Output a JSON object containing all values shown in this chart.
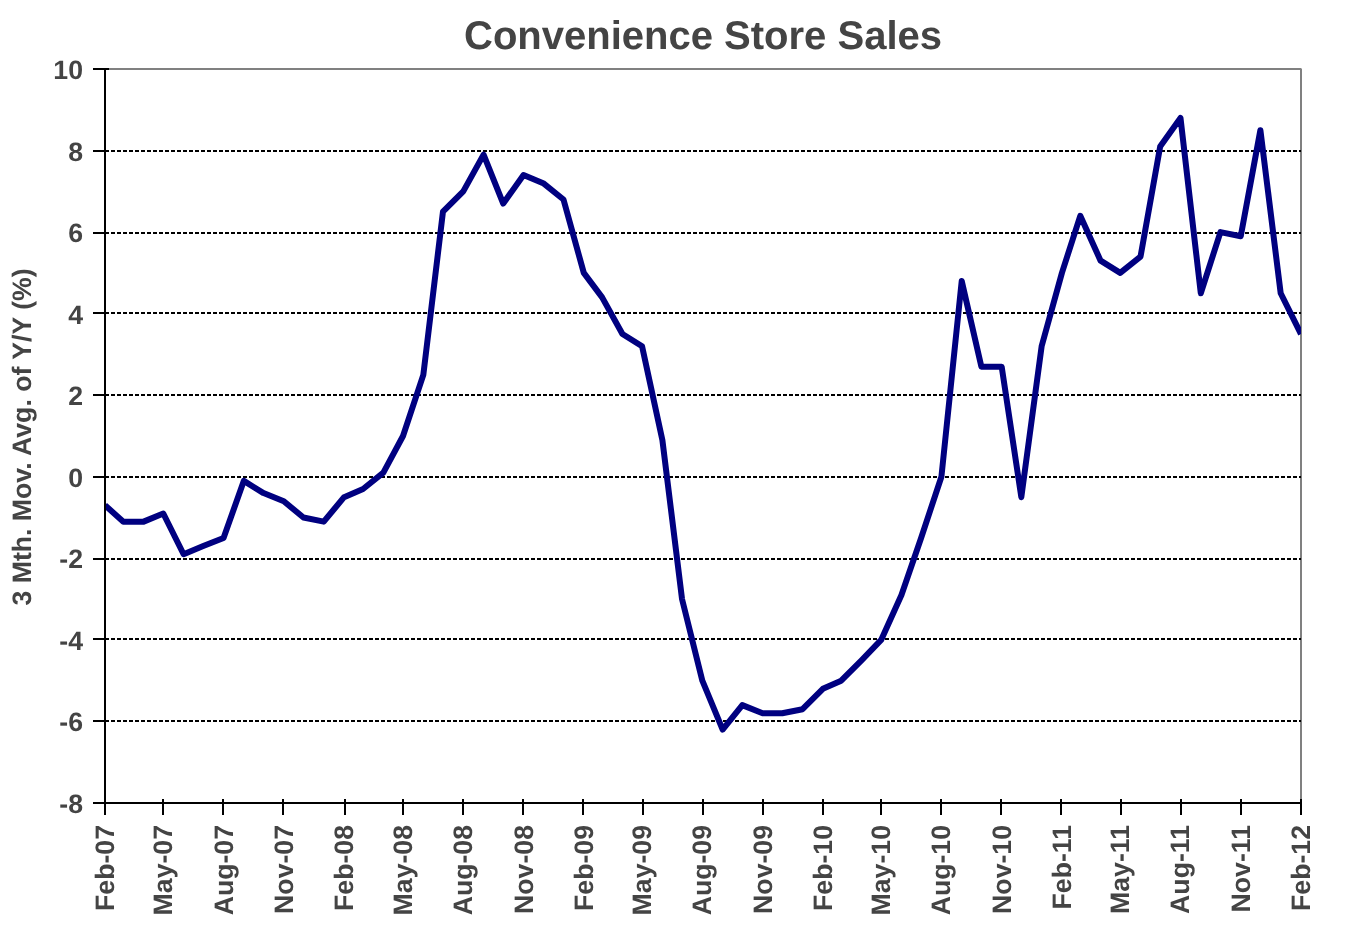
{
  "chart_data": {
    "type": "line",
    "title": "Convenience Store Sales",
    "ylabel": "3 Mth. Mov. Avg. of Y/Y (%)",
    "x": [
      "2007-02",
      "2007-03",
      "2007-04",
      "2007-05",
      "2007-06",
      "2007-07",
      "2007-08",
      "2007-09",
      "2007-10",
      "2007-11",
      "2007-12",
      "2008-01",
      "2008-02",
      "2008-03",
      "2008-04",
      "2008-05",
      "2008-06",
      "2008-07",
      "2008-08",
      "2008-09",
      "2008-10",
      "2008-11",
      "2008-12",
      "2009-01",
      "2009-02",
      "2009-03",
      "2009-04",
      "2009-05",
      "2009-06",
      "2009-07",
      "2009-08",
      "2009-09",
      "2009-10",
      "2009-11",
      "2009-12",
      "2010-01",
      "2010-02",
      "2010-03",
      "2010-04",
      "2010-05",
      "2010-06",
      "2010-07",
      "2010-08",
      "2010-09",
      "2010-10",
      "2010-11",
      "2010-12",
      "2011-01",
      "2011-02",
      "2011-03",
      "2011-04",
      "2011-05",
      "2011-06",
      "2011-07",
      "2011-08",
      "2011-09",
      "2011-10",
      "2011-11",
      "2011-12",
      "2012-01",
      "2012-02"
    ],
    "series": [
      {
        "color": "#000080",
        "values": [
          -0.7,
          -1.1,
          -1.1,
          -0.9,
          -1.9,
          -1.7,
          -1.5,
          -0.1,
          -0.4,
          -0.6,
          -1.0,
          -1.1,
          -0.5,
          -0.3,
          0.1,
          1.0,
          2.5,
          6.5,
          7.0,
          7.9,
          6.7,
          7.4,
          7.2,
          6.8,
          5.0,
          4.4,
          3.5,
          3.2,
          0.9,
          -3.0,
          -5.0,
          -6.2,
          -5.6,
          -5.8,
          -5.8,
          -5.7,
          -5.2,
          -5.0,
          -4.5,
          -4.0,
          -2.9,
          -1.5,
          0.0,
          4.8,
          2.7,
          2.7,
          -0.5,
          3.2,
          5.0,
          6.4,
          5.3,
          5.0,
          5.4,
          8.1,
          8.8,
          4.5,
          6.0,
          5.9,
          8.5,
          4.5,
          3.5
        ]
      }
    ],
    "xlim": [
      "2007-02",
      "2012-02"
    ],
    "xticks": [
      {
        "value": "2007-02",
        "label": "Feb-07"
      },
      {
        "value": "2007-05",
        "label": "May-07"
      },
      {
        "value": "2007-08",
        "label": "Aug-07"
      },
      {
        "value": "2007-11",
        "label": "Nov-07"
      },
      {
        "value": "2008-02",
        "label": "Feb-08"
      },
      {
        "value": "2008-05",
        "label": "May-08"
      },
      {
        "value": "2008-08",
        "label": "Aug-08"
      },
      {
        "value": "2008-11",
        "label": "Nov-08"
      },
      {
        "value": "2009-02",
        "label": "Feb-09"
      },
      {
        "value": "2009-05",
        "label": "May-09"
      },
      {
        "value": "2009-08",
        "label": "Aug-09"
      },
      {
        "value": "2009-11",
        "label": "Nov-09"
      },
      {
        "value": "2010-02",
        "label": "Feb-10"
      },
      {
        "value": "2010-05",
        "label": "May-10"
      },
      {
        "value": "2010-08",
        "label": "Aug-10"
      },
      {
        "value": "2010-11",
        "label": "Nov-10"
      },
      {
        "value": "2011-02",
        "label": "Feb-11"
      },
      {
        "value": "2011-05",
        "label": "May-11"
      },
      {
        "value": "2011-08",
        "label": "Aug-11"
      },
      {
        "value": "2011-11",
        "label": "Nov-11"
      },
      {
        "value": "2012-02",
        "label": "Feb-12"
      }
    ],
    "ylim": [
      -8,
      10
    ],
    "yticks": [
      -8,
      -6,
      -4,
      -2,
      0,
      2,
      4,
      6,
      8,
      10
    ],
    "grid": "y",
    "marker": "none",
    "line_style": "solid"
  }
}
